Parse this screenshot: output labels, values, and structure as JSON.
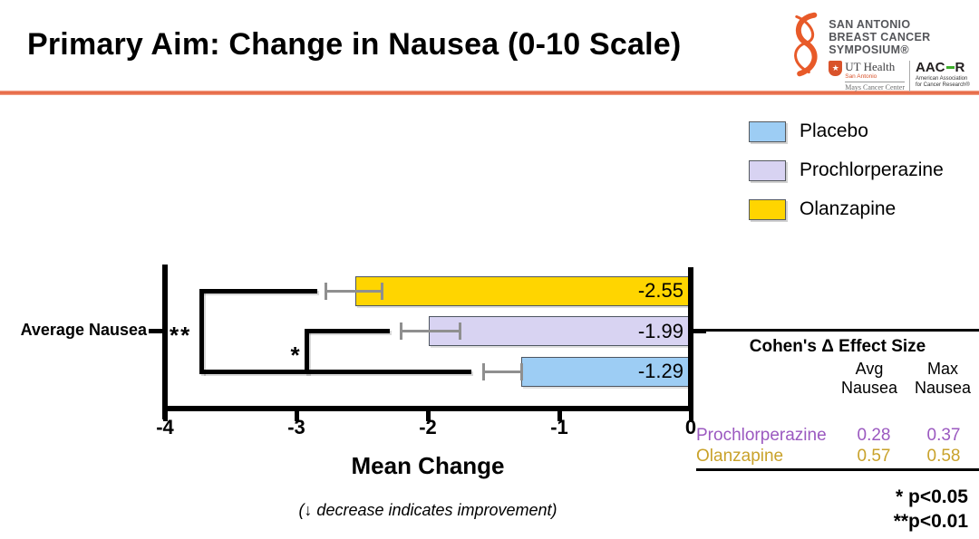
{
  "header": {
    "title": "Primary Aim: Change in Nausea (0-10 Scale)",
    "divider_color": "#E8694B"
  },
  "logo": {
    "symposium_lines": [
      "SAN ANTONIO",
      "BREAST CANCER",
      "SYMPOSIUM®"
    ],
    "ribbon_color": "#E85A29",
    "ut_health": {
      "name": "UT Health",
      "city": "San Antonio",
      "center": "Mays Cancer Center",
      "star": "★"
    },
    "aacr": {
      "name_left": "AAC",
      "name_right": "R",
      "accent_color": "#3DAE2B",
      "tagline": "American Association for Cancer Research®"
    }
  },
  "legend": {
    "items": [
      {
        "label": "Placebo",
        "color": "#9DCDF4"
      },
      {
        "label": "Prochlorperazine",
        "color": "#D8D3F2"
      },
      {
        "label": "Olanzapine",
        "color": "#FFD500"
      }
    ]
  },
  "chart_data": {
    "type": "bar",
    "orientation": "horizontal",
    "category_label": "Average Nausea",
    "xlabel": "Mean Change",
    "xlim": [
      -4,
      0
    ],
    "xticks": [
      -4,
      -3,
      -2,
      -1,
      0
    ],
    "xtick_labels": [
      "-4",
      "-3",
      "-2",
      "-1",
      "0"
    ],
    "grid": false,
    "bars": [
      {
        "name": "Olanzapine",
        "value": -2.55,
        "label": "-2.55",
        "color": "#FFD500",
        "ci": [
          -2.78,
          -2.35
        ]
      },
      {
        "name": "Prochlorperazine",
        "value": -1.99,
        "label": "-1.99",
        "color": "#D8D3F2",
        "ci": [
          -2.21,
          -1.76
        ]
      },
      {
        "name": "Placebo",
        "value": -1.29,
        "label": "-1.29",
        "color": "#9DCDF4",
        "ci": [
          -1.58,
          -1.29
        ]
      }
    ],
    "comparisons": [
      {
        "label": "**",
        "top": "Olanzapine",
        "bottom": "Placebo",
        "x": -3.72,
        "arm_end_top": -2.84,
        "arm_end_bottom": -1.67,
        "label_pos": "near-axis"
      },
      {
        "label": "*",
        "top": "Prochlorperazine",
        "bottom": "Placebo",
        "x": -2.92,
        "arm_end_top": -2.29,
        "arm_end_bottom": null,
        "label_pos": "left-of-bracket"
      }
    ],
    "error_bar_color": "#8f8f8f",
    "footnote": "(↓ decrease indicates improvement)"
  },
  "effect_table": {
    "title": "Cohen's Δ Effect Size",
    "col_headers": [
      "Avg Nausea",
      "Max Nausea"
    ],
    "rows": [
      {
        "name": "Prochlorperazine",
        "avg": "0.28",
        "max": "0.37",
        "color": "#9B59C0"
      },
      {
        "name": "Olanzapine",
        "avg": "0.57",
        "max": "0.58",
        "color": "#C9A22B"
      }
    ]
  },
  "significance": {
    "line1": "* p<0.05",
    "line2": "**p<0.01"
  }
}
